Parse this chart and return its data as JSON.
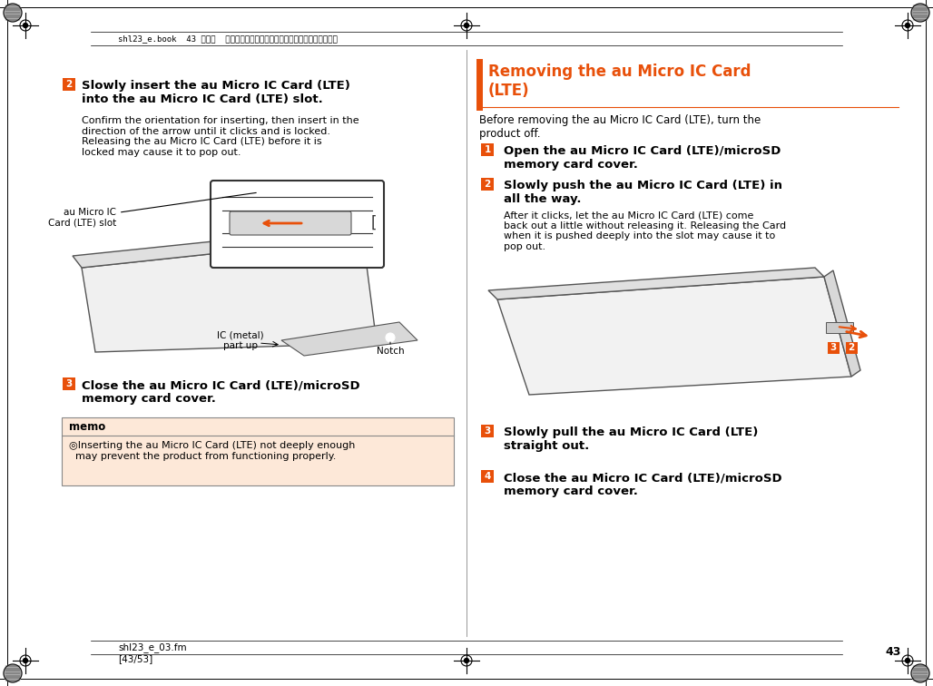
{
  "page_bg": "#ffffff",
  "orange_color": "#e8500a",
  "light_orange_bg": "#fde8d8",
  "step_sq_color": "#e8500a",
  "header_text": "shl23_e.book  43 ページ  ２０１３年１１月１２日　火曜日　午後４時４８分",
  "footer_text1": "shl23_e_03.fm",
  "footer_text2": "[43/53]",
  "page_number": "43"
}
